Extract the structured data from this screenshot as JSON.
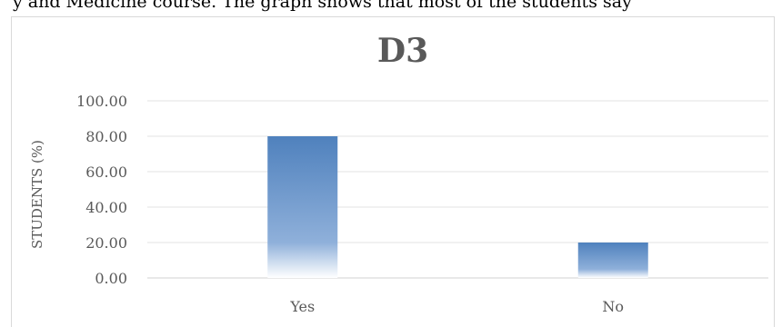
{
  "page_text": {
    "top_cropped_line": "y and Medicine course. The graph shows that most of the students say"
  },
  "chart_data": {
    "type": "bar",
    "title": "D3",
    "ylabel": "STUDENTS (%)",
    "xlabel": "",
    "categories": [
      "Yes",
      "No"
    ],
    "values": [
      80.0,
      20.0
    ],
    "ylim": [
      0,
      100
    ],
    "yticks": [
      "0.00",
      "20.00",
      "40.00",
      "60.00",
      "80.00",
      "100.00"
    ],
    "grid": true,
    "legend": "none",
    "bar_color": "#4f81bd"
  }
}
